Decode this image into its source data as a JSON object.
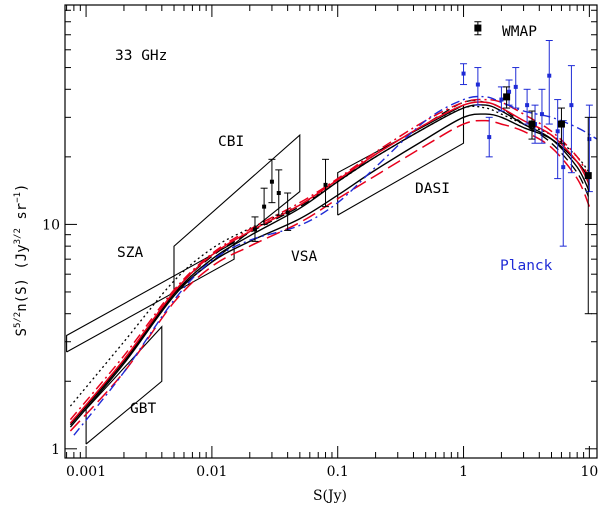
{
  "chart_data": {
    "type": "line",
    "title": "",
    "xlabel": "S(Jy)",
    "ylabel": {
      "base": "S",
      "exp1": "5/2",
      "mid": "n(S)  (Jy",
      "exp2": "3/2",
      "mid2": " sr",
      "exp3": "−1",
      "end": ")"
    },
    "x_scale": "log",
    "y_scale": "log",
    "xlim": [
      0.00068,
      11.5
    ],
    "ylim": [
      0.91,
      95
    ],
    "x_ticks": [
      {
        "value": 0.001,
        "label": "0.001"
      },
      {
        "value": 0.01,
        "label": "0.01"
      },
      {
        "value": 0.1,
        "label": "0.1"
      },
      {
        "value": 1,
        "label": "1"
      },
      {
        "value": 10,
        "label": "10"
      }
    ],
    "y_ticks": [
      {
        "value": 1,
        "label": "1"
      },
      {
        "value": 10,
        "label": "10"
      }
    ],
    "annotations": {
      "frequency": "33 GHz",
      "wmap": "WMAP",
      "cbi": "CBI",
      "dasi": "DASI",
      "sza": "SZA",
      "vsa": "VSA",
      "gbt": "GBT",
      "planck": "Planck"
    },
    "colors": {
      "red": "#e8001c",
      "blue": "#1f2bd6",
      "black": "#000000"
    },
    "boxes": [
      {
        "name": "cbi",
        "corners": [
          [
            0.005,
            5.0
          ],
          [
            0.005,
            8.0
          ],
          [
            0.05,
            25
          ],
          [
            0.05,
            14
          ],
          [
            0.005,
            5.0
          ]
        ]
      },
      {
        "name": "dasi",
        "corners": [
          [
            0.1,
            11
          ],
          [
            0.1,
            17
          ],
          [
            1,
            34
          ],
          [
            1,
            23
          ],
          [
            0.1,
            11
          ]
        ]
      },
      {
        "name": "sza",
        "corners": [
          [
            0.0007,
            2.7
          ],
          [
            0.0007,
            3.2
          ],
          [
            0.015,
            8.3
          ],
          [
            0.015,
            7.0
          ],
          [
            0.0007,
            2.7
          ]
        ]
      },
      {
        "name": "gbt",
        "corners": [
          [
            0.001,
            1.05
          ],
          [
            0.001,
            1.5
          ],
          [
            0.004,
            3.5
          ],
          [
            0.004,
            2.0
          ],
          [
            0.001,
            1.05
          ]
        ]
      }
    ],
    "series": [
      {
        "name": "model-black-solid",
        "color": "#000000",
        "dash": "",
        "width": 1.4,
        "x": [
          0.00075,
          0.002,
          0.005,
          0.01,
          0.02,
          0.05,
          0.1,
          0.2,
          0.5,
          1,
          1.5,
          2,
          3,
          5,
          8,
          10
        ],
        "y": [
          1.25,
          2.4,
          4.8,
          6.8,
          8.4,
          10.6,
          13.5,
          17.5,
          24,
          30,
          31,
          30,
          27,
          24,
          19,
          16
        ]
      },
      {
        "name": "model-black-solid-2",
        "color": "#000000",
        "dash": "",
        "width": 1.4,
        "x": [
          0.00075,
          0.002,
          0.005,
          0.01,
          0.02,
          0.05,
          0.1,
          0.2,
          0.5,
          1,
          1.5,
          2,
          3,
          5,
          8,
          10
        ],
        "y": [
          1.28,
          2.45,
          4.9,
          7.0,
          8.9,
          11.8,
          15.5,
          20,
          27,
          33,
          34,
          32,
          28,
          24,
          18,
          14
        ]
      },
      {
        "name": "model-black-dotted",
        "color": "#000000",
        "dash": "2,3",
        "width": 1.3,
        "x": [
          0.00075,
          0.002,
          0.005,
          0.01,
          0.02,
          0.05,
          0.1,
          0.2,
          0.5,
          1,
          1.5,
          2,
          3,
          5,
          8,
          10
        ],
        "y": [
          1.55,
          3.0,
          5.6,
          7.8,
          9.6,
          12.2,
          15.5,
          20,
          27,
          33,
          33,
          31,
          28,
          25,
          20,
          17
        ]
      },
      {
        "name": "model-black-dashed",
        "color": "#000000",
        "dash": "9,5",
        "width": 1.3,
        "x": [
          0.00075,
          0.002,
          0.005,
          0.01,
          0.02,
          0.05,
          0.1,
          0.2,
          0.5,
          1,
          1.5,
          2,
          3,
          5,
          8,
          10
        ],
        "y": [
          1.3,
          2.5,
          5.0,
          7.2,
          9.2,
          12.0,
          15.5,
          20.5,
          28,
          35,
          35,
          33,
          28,
          23,
          17,
          13
        ]
      },
      {
        "name": "model-red-solid",
        "color": "#e8001c",
        "dash": "",
        "width": 1.5,
        "x": [
          0.00075,
          0.002,
          0.005,
          0.01,
          0.02,
          0.05,
          0.1,
          0.2,
          0.5,
          1,
          1.5,
          2,
          3,
          5,
          8,
          10
        ],
        "y": [
          1.3,
          2.5,
          5.0,
          7.3,
          9.3,
          12.2,
          15.8,
          20.5,
          28,
          34,
          35,
          33,
          29,
          25,
          19,
          15
        ]
      },
      {
        "name": "model-red-longdash",
        "color": "#e8001c",
        "dash": "14,6",
        "width": 1.5,
        "x": [
          0.00075,
          0.002,
          0.005,
          0.01,
          0.02,
          0.05,
          0.1,
          0.2,
          0.5,
          1,
          1.5,
          2,
          3,
          5,
          8,
          10
        ],
        "y": [
          1.2,
          2.2,
          4.5,
          6.5,
          8.0,
          10.2,
          13,
          16.5,
          22.5,
          28,
          29,
          28,
          26,
          22,
          16,
          12
        ]
      },
      {
        "name": "model-red-dashdot",
        "color": "#e8001c",
        "dash": "10,4,2,4",
        "width": 1.5,
        "x": [
          0.00075,
          0.002,
          0.005,
          0.01,
          0.02,
          0.05,
          0.1,
          0.2,
          0.5,
          1,
          1.5,
          2,
          3,
          5,
          8,
          10
        ],
        "y": [
          1.35,
          2.6,
          5.1,
          7.4,
          9.5,
          12.5,
          16,
          21,
          29,
          35,
          36,
          35,
          31,
          26,
          20,
          16
        ]
      },
      {
        "name": "model-blue-dashdot",
        "color": "#1f2bd6",
        "dash": "9,4,2,4",
        "width": 1.4,
        "x": [
          0.0008,
          0.002,
          0.005,
          0.01,
          0.02,
          0.05,
          0.1,
          0.2,
          0.5,
          1,
          1.5,
          2,
          3,
          5,
          8,
          11.5
        ],
        "y": [
          1.15,
          2.2,
          4.6,
          6.9,
          8.5,
          9.9,
          12.5,
          18,
          29,
          36,
          37,
          35,
          32,
          30,
          27,
          24
        ]
      }
    ],
    "points_black": [
      {
        "x": 0.022,
        "y": 9.5,
        "lo": 8.4,
        "hi": 10.8
      },
      {
        "x": 0.026,
        "y": 12.0,
        "lo": 10.0,
        "hi": 14.5
      },
      {
        "x": 0.03,
        "y": 15.5,
        "lo": 12.5,
        "hi": 19.5
      },
      {
        "x": 0.034,
        "y": 13.8,
        "lo": 11.0,
        "hi": 17.5
      },
      {
        "x": 0.04,
        "y": 11.3,
        "lo": 9.4,
        "hi": 13.8
      },
      {
        "x": 0.08,
        "y": 15.0,
        "lo": 12.0,
        "hi": 19.5
      },
      {
        "x": 1.3,
        "y": 75,
        "lo": 70,
        "hi": 80,
        "big": true
      },
      {
        "x": 2.2,
        "y": 37,
        "lo": 33,
        "hi": 41,
        "big": true
      },
      {
        "x": 3.5,
        "y": 28,
        "lo": 24,
        "hi": 32,
        "big": true
      },
      {
        "x": 6.0,
        "y": 28,
        "lo": 23,
        "hi": 33,
        "big": true
      },
      {
        "x": 9.8,
        "y": 16.5,
        "lo": 4.0,
        "hi": 30,
        "big": true
      }
    ],
    "points_blue": [
      {
        "x": 1.0,
        "y": 47,
        "lo": 42,
        "hi": 52
      },
      {
        "x": 1.3,
        "y": 42,
        "lo": 34,
        "hi": 50
      },
      {
        "x": 1.6,
        "y": 24.5,
        "lo": 20,
        "hi": 30
      },
      {
        "x": 2.0,
        "y": 36,
        "lo": 32,
        "hi": 41
      },
      {
        "x": 2.3,
        "y": 39,
        "lo": 34,
        "hi": 44
      },
      {
        "x": 2.6,
        "y": 41,
        "lo": 33,
        "hi": 50
      },
      {
        "x": 3.2,
        "y": 34,
        "lo": 28,
        "hi": 40
      },
      {
        "x": 3.7,
        "y": 28,
        "lo": 23,
        "hi": 34
      },
      {
        "x": 4.2,
        "y": 31,
        "lo": 23,
        "hi": 40
      },
      {
        "x": 4.8,
        "y": 46,
        "lo": 28,
        "hi": 66
      },
      {
        "x": 5.6,
        "y": 26,
        "lo": 16,
        "hi": 36
      },
      {
        "x": 6.2,
        "y": 18,
        "lo": 8,
        "hi": 29
      },
      {
        "x": 7.2,
        "y": 34,
        "lo": 17,
        "hi": 51
      },
      {
        "x": 10.0,
        "y": 24,
        "lo": 14,
        "hi": 34
      }
    ]
  }
}
